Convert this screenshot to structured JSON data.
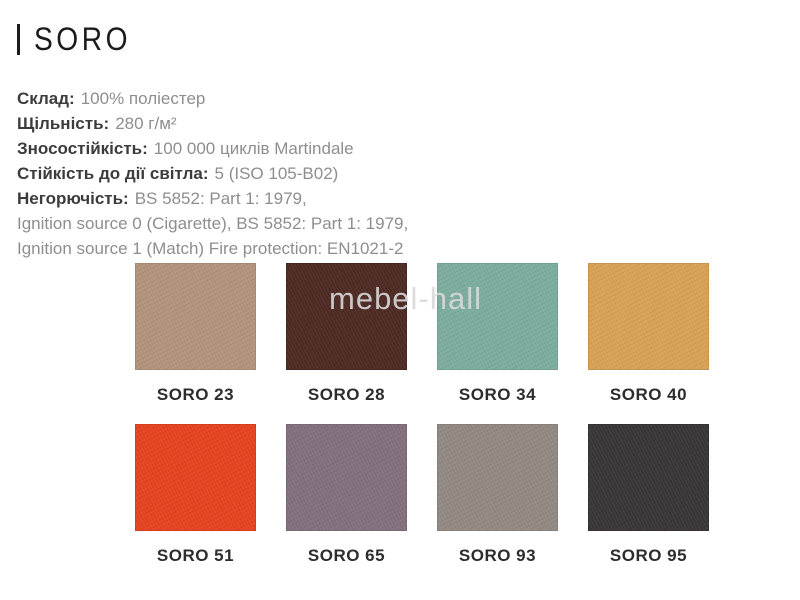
{
  "header": {
    "title": "SORO"
  },
  "specs": [
    {
      "label": "Склад:",
      "value": "100% поліестер"
    },
    {
      "label": "Щільність:",
      "value": "280 г/м²"
    },
    {
      "label": "Зносостійкість:",
      "value": "100 000 циклів Martindale"
    },
    {
      "label": "Стійкість до дії світла:",
      "value": "5 (ISO 105-B02)"
    },
    {
      "label": "Негорючість:",
      "value": "BS 5852: Part 1: 1979,"
    },
    {
      "label": "",
      "value": "Ignition source 0 (Cigarette), BS 5852: Part 1: 1979,"
    },
    {
      "label": "",
      "value": "Ignition source 1 (Match) Fire protection: EN1021-2"
    }
  ],
  "swatches": [
    {
      "label": "SORO 23",
      "color": "#b2947a"
    },
    {
      "label": "SORO 28",
      "color": "#4e2a23"
    },
    {
      "label": "SORO 34",
      "color": "#7cad9f"
    },
    {
      "label": "SORO 40",
      "color": "#d7a254"
    },
    {
      "label": "SORO 51",
      "color": "#e64320"
    },
    {
      "label": "SORO 65",
      "color": "#83707e"
    },
    {
      "label": "SORO 93",
      "color": "#938983"
    },
    {
      "label": "SORO 95",
      "color": "#383637"
    }
  ],
  "watermark": {
    "text": "mebel-hall"
  },
  "palette": {
    "title_text": "#1b1b1b",
    "spec_label_text": "#3c3c3c",
    "spec_value_text": "#8e8e8e",
    "swatch_label_text": "#2d2d2d",
    "watermark_text": "#d9d9d9",
    "background": "#ffffff"
  }
}
